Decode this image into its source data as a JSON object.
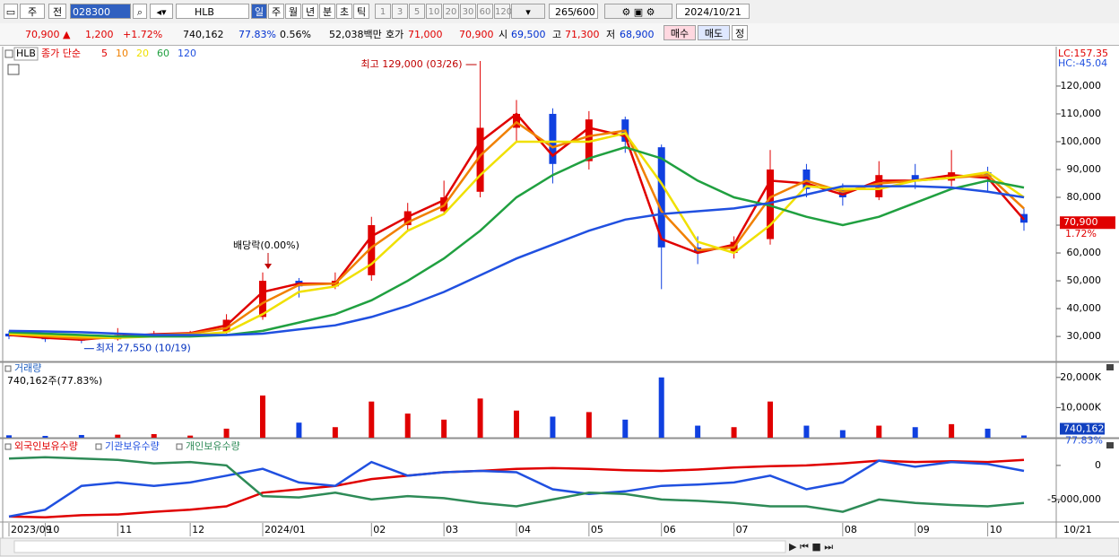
{
  "toolbar": {
    "view": "주",
    "compare": "전",
    "code": "028300",
    "name": "HLB",
    "periods": [
      "일",
      "주",
      "월",
      "년",
      "분",
      "초",
      "틱"
    ],
    "intervals": [
      "1",
      "3",
      "5",
      "10",
      "20",
      "30",
      "60",
      "120"
    ],
    "count": "265",
    "max": "/600",
    "date": "2024/10/21"
  },
  "quote": {
    "price": "70,900 ▲",
    "change": "1,200",
    "change_pct": "+1.72%",
    "volume": "740,162",
    "volume_ratio": "77.83%",
    "turnover": "0.56%",
    "amount": "52,038백만",
    "ask_label": "호가",
    "ask": "71,000",
    "bid": "70,900",
    "open_label": "시",
    "open": "69,500",
    "high_label": "고",
    "high": "71,300",
    "low_label": "저",
    "low": "68,900",
    "buttons": [
      "매수",
      "매도",
      "정"
    ]
  },
  "chart_data": [
    {
      "type": "candlestick",
      "legend_name": "HLB",
      "legend_title": "종가 단순",
      "up_color": "#e00000",
      "down_color": "#1040e0",
      "open": [
        31000,
        30000,
        29500,
        29000,
        30500,
        31000,
        31500,
        37000,
        50000,
        48000,
        52000,
        70000,
        75000,
        82000,
        105000,
        110000,
        93000,
        108000,
        98000,
        62000,
        60000,
        65000,
        90000,
        83000,
        80000,
        88000,
        86000,
        89000,
        74000
      ],
      "high": [
        32000,
        30500,
        30000,
        33000,
        32000,
        32000,
        38000,
        53000,
        51000,
        53000,
        73000,
        78000,
        86000,
        129000,
        115000,
        112000,
        111000,
        109000,
        99000,
        66000,
        66000,
        97000,
        92000,
        85000,
        93000,
        92000,
        97000,
        91000,
        76000
      ],
      "low": [
        29000,
        28000,
        27550,
        28500,
        30000,
        30500,
        31000,
        36000,
        44000,
        47000,
        50000,
        68000,
        74000,
        80000,
        100000,
        85000,
        90000,
        96000,
        47000,
        56000,
        58000,
        63000,
        80000,
        77000,
        79000,
        83000,
        84000,
        82000,
        68000
      ],
      "close": [
        30000,
        29000,
        28500,
        30500,
        31000,
        31500,
        36000,
        50000,
        48000,
        50000,
        70000,
        75000,
        80000,
        105000,
        110000,
        92000,
        108000,
        100000,
        62000,
        60000,
        64000,
        90000,
        83000,
        80000,
        88000,
        86000,
        89000,
        87000,
        70900
      ],
      "series": [
        {
          "name": "5",
          "color": "#e00000",
          "values": [
            30500,
            29500,
            28800,
            30000,
            30800,
            31200,
            34000,
            46000,
            49000,
            49000,
            66000,
            73000,
            79000,
            100000,
            110000,
            95000,
            105000,
            102000,
            65000,
            60000,
            63000,
            86000,
            85000,
            81000,
            86000,
            86000,
            88000,
            87000,
            72000
          ]
        },
        {
          "name": "10",
          "color": "#f08000",
          "values": [
            30800,
            30000,
            29300,
            29500,
            30500,
            31000,
            33000,
            42000,
            48500,
            49000,
            62000,
            71000,
            77000,
            95000,
            107000,
            98000,
            102000,
            104000,
            75000,
            61000,
            62000,
            80000,
            86000,
            82000,
            85000,
            86000,
            87000,
            88000,
            76000
          ]
        },
        {
          "name": "20",
          "color": "#f0e000",
          "values": [
            31000,
            30500,
            30000,
            29500,
            30000,
            30500,
            31500,
            38000,
            46000,
            48000,
            56000,
            68000,
            74000,
            88000,
            100000,
            100000,
            100000,
            103000,
            85000,
            64000,
            60000,
            70000,
            84000,
            83000,
            83000,
            86000,
            87000,
            89000,
            80000
          ]
        },
        {
          "name": "60",
          "color": "#20a040",
          "values": [
            31500,
            31000,
            30500,
            30000,
            30000,
            30000,
            30500,
            32000,
            35000,
            38000,
            43000,
            50000,
            58000,
            68000,
            80000,
            88000,
            94000,
            98000,
            94000,
            86000,
            80000,
            77000,
            73000,
            70000,
            73000,
            78000,
            83000,
            86000,
            83500
          ]
        },
        {
          "name": "120",
          "color": "#2050e0",
          "values": [
            32000,
            31800,
            31500,
            31000,
            30500,
            30500,
            30500,
            31000,
            32500,
            34000,
            37000,
            41000,
            46000,
            52000,
            58000,
            63000,
            68000,
            72000,
            74000,
            75000,
            76000,
            78000,
            81000,
            84000,
            84000,
            84000,
            83500,
            82000,
            80000
          ]
        }
      ],
      "annotations": {
        "high": "최고 129,000 (03/26)",
        "low": "최저 27,550 (10/19)",
        "dividend": "배당락(0.00%)"
      },
      "corner_labels": [
        "LC:157.35",
        "HC:-45.04"
      ],
      "last_label": "70,900",
      "last_change_label": "1.72%",
      "ylim": [
        21000,
        133200
      ],
      "yticks": [
        {
          "value": 30000,
          "label": "30,000"
        },
        {
          "value": 40000,
          "label": "40,000"
        },
        {
          "value": 50000,
          "label": "50,000"
        },
        {
          "value": 60000,
          "label": "60,000"
        },
        {
          "value": 70000,
          "label": "70,000"
        },
        {
          "value": 80000,
          "label": "80,000"
        },
        {
          "value": 90000,
          "label": "90,000"
        },
        {
          "value": 100000,
          "label": "100,000"
        },
        {
          "value": 110000,
          "label": "110,000"
        },
        {
          "value": 120000,
          "label": "120,000"
        }
      ]
    },
    {
      "type": "bar",
      "title": "거래량",
      "subtitle": "740,162주(77.83%)",
      "values": [
        800,
        600,
        900,
        1000,
        1200,
        700,
        3000,
        14000,
        5000,
        3500,
        12000,
        8000,
        6000,
        13000,
        9000,
        7000,
        8500,
        6000,
        20000,
        4000,
        3500,
        12000,
        4000,
        2500,
        4000,
        3500,
        4500,
        3000,
        740.162
      ],
      "last_label": "740,162",
      "last_ratio": "77.83%",
      "ylim": [
        0,
        24700
      ],
      "yticks": [
        {
          "value": 10000,
          "label": "10,000K"
        },
        {
          "value": 20000,
          "label": "20,000K"
        }
      ]
    },
    {
      "type": "line",
      "categories": [
        "2023/09",
        "10",
        null,
        "11",
        null,
        "12",
        null,
        "2024/01",
        null,
        null,
        "02",
        null,
        "03",
        null,
        "04",
        null,
        "05",
        null,
        "06",
        null,
        "07",
        null,
        null,
        "08",
        null,
        "09",
        null,
        "10",
        null
      ],
      "x_end_label": "10/21",
      "series": [
        {
          "name": "외국인보유수량",
          "color": "#e00000",
          "values": [
            -7500000,
            -7600000,
            -7300000,
            -7200000,
            -6800000,
            -6500000,
            -6000000,
            -4000000,
            -3500000,
            -3000000,
            -2000000,
            -1500000,
            -1000000,
            -800000,
            -500000,
            -400000,
            -500000,
            -700000,
            -800000,
            -600000,
            -300000,
            -100000,
            0,
            300000,
            700000,
            500000,
            600000,
            500000,
            800000
          ]
        },
        {
          "name": "기관보유수량",
          "color": "#2050e0",
          "values": [
            -7500000,
            -6500000,
            -3000000,
            -2500000,
            -3000000,
            -2500000,
            -1500000,
            -500000,
            -2500000,
            -3000000,
            500000,
            -1500000,
            -1000000,
            -800000,
            -1000000,
            -3500000,
            -4200000,
            -3800000,
            -3000000,
            -2800000,
            -2500000,
            -1500000,
            -3500000,
            -2500000,
            700000,
            -200000,
            500000,
            200000,
            -800000
          ]
        },
        {
          "name": "개인보유수량",
          "color": "#2e8b57",
          "values": [
            1000000,
            1200000,
            1000000,
            800000,
            300000,
            500000,
            0,
            -4500000,
            -4700000,
            -4000000,
            -5000000,
            -4500000,
            -4800000,
            -5500000,
            -6000000,
            -5000000,
            -4000000,
            -4200000,
            -5000000,
            -5200000,
            -5500000,
            -6000000,
            -6000000,
            -6800000,
            -5000000,
            -5500000,
            -5800000,
            -6000000,
            -5500000
          ]
        }
      ],
      "ylim": [
        -8300000,
        3800000
      ],
      "yticks": [
        0,
        {
          "value": -5000000,
          "label": "-5,000,000"
        }
      ]
    }
  ]
}
